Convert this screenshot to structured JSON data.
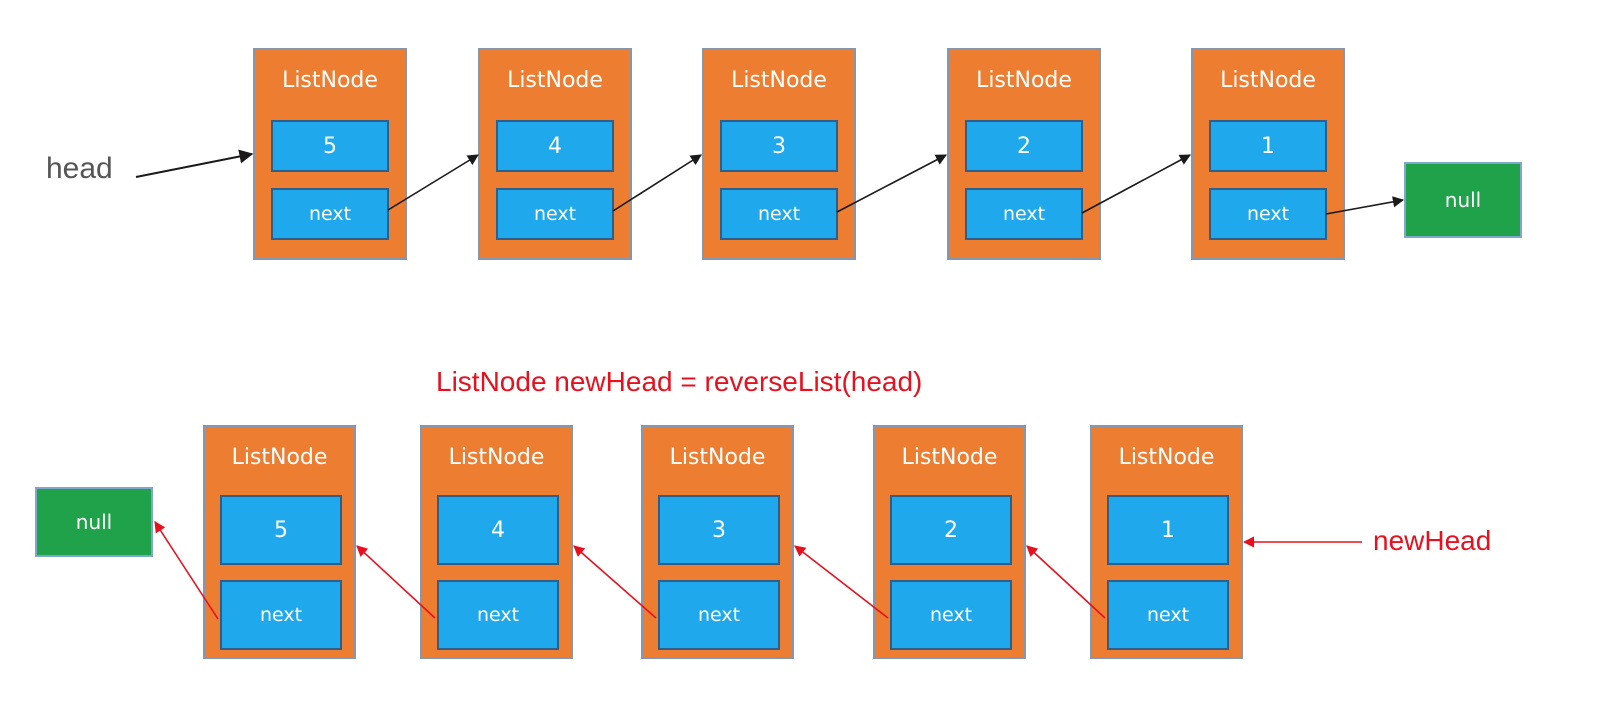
{
  "caption": "ListNode newHead = reverseList(head)",
  "labels": {
    "head": "head",
    "new_head": "newHead"
  },
  "original_list": {
    "nodes": [
      {
        "title": "ListNode",
        "value": "5",
        "next": "next"
      },
      {
        "title": "ListNode",
        "value": "4",
        "next": "next"
      },
      {
        "title": "ListNode",
        "value": "3",
        "next": "next"
      },
      {
        "title": "ListNode",
        "value": "2",
        "next": "next"
      },
      {
        "title": "ListNode",
        "value": "1",
        "next": "next"
      }
    ],
    "terminal": "null"
  },
  "reversed_list": {
    "nodes": [
      {
        "title": "ListNode",
        "value": "5",
        "next": "next"
      },
      {
        "title": "ListNode",
        "value": "4",
        "next": "next"
      },
      {
        "title": "ListNode",
        "value": "3",
        "next": "next"
      },
      {
        "title": "ListNode",
        "value": "2",
        "next": "next"
      },
      {
        "title": "ListNode",
        "value": "1",
        "next": "next"
      }
    ],
    "terminal": "null"
  },
  "colors": {
    "node_fill": "#ED7D31",
    "field_fill": "#1FA9EC",
    "null_fill": "#1FA24A",
    "original_arrow": "#1a1a1a",
    "reversed_arrow": "#E8101E"
  }
}
